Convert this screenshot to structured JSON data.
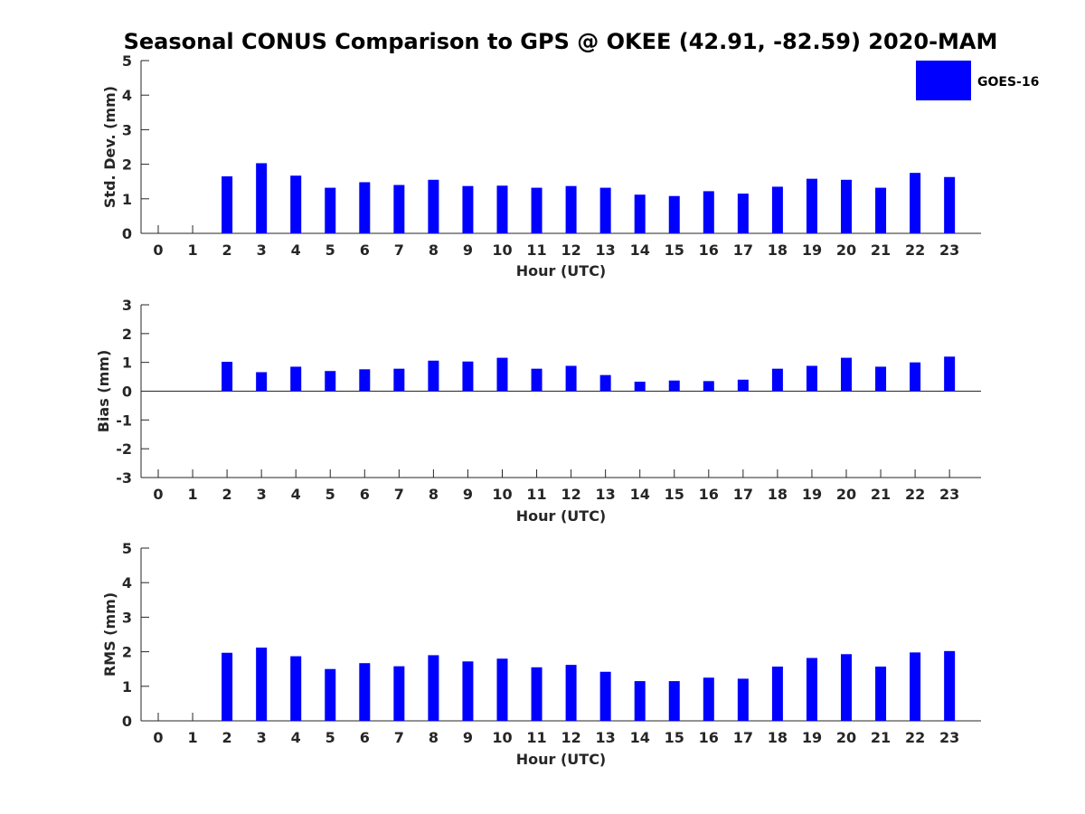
{
  "title": "Seasonal CONUS Comparison to GPS @ OKEE (42.91, -82.59) 2020-MAM",
  "legend": {
    "label": "GOES-16",
    "color": "#0000ff"
  },
  "chart_data": [
    {
      "type": "bar",
      "title": "Seasonal CONUS Comparison to GPS @ OKEE (42.91, -82.59) 2020-MAM",
      "xlabel": "Hour (UTC)",
      "ylabel": "Std. Dev. (mm)",
      "ylim": [
        0,
        5
      ],
      "yticks": [
        "0",
        "1",
        "2",
        "3",
        "4",
        "5"
      ],
      "categories": [
        "0",
        "1",
        "2",
        "3",
        "4",
        "5",
        "6",
        "7",
        "8",
        "9",
        "10",
        "11",
        "12",
        "13",
        "14",
        "15",
        "16",
        "17",
        "18",
        "19",
        "20",
        "21",
        "22",
        "23"
      ],
      "series": [
        {
          "name": "GOES-16",
          "values": [
            null,
            null,
            1.65,
            2.03,
            1.67,
            1.32,
            1.48,
            1.4,
            1.55,
            1.37,
            1.38,
            1.32,
            1.37,
            1.32,
            1.12,
            1.08,
            1.22,
            1.15,
            1.35,
            1.58,
            1.55,
            1.32,
            1.75,
            1.63
          ]
        }
      ]
    },
    {
      "type": "bar",
      "xlabel": "Hour (UTC)",
      "ylabel": "Bias (mm)",
      "ylim": [
        -3,
        3
      ],
      "yticks": [
        "-3",
        "-2",
        "-1",
        "0",
        "1",
        "2",
        "3"
      ],
      "zero_line": true,
      "categories": [
        "0",
        "1",
        "2",
        "3",
        "4",
        "5",
        "6",
        "7",
        "8",
        "9",
        "10",
        "11",
        "12",
        "13",
        "14",
        "15",
        "16",
        "17",
        "18",
        "19",
        "20",
        "21",
        "22",
        "23"
      ],
      "series": [
        {
          "name": "GOES-16",
          "values": [
            null,
            null,
            1.02,
            0.66,
            0.85,
            0.7,
            0.76,
            0.78,
            1.06,
            1.03,
            1.16,
            0.78,
            0.88,
            0.56,
            0.33,
            0.37,
            0.35,
            0.4,
            0.78,
            0.88,
            1.16,
            0.85,
            1.0,
            1.2
          ]
        }
      ]
    },
    {
      "type": "bar",
      "xlabel": "Hour (UTC)",
      "ylabel": "RMS (mm)",
      "ylim": [
        0,
        5
      ],
      "yticks": [
        "0",
        "1",
        "2",
        "3",
        "4",
        "5"
      ],
      "categories": [
        "0",
        "1",
        "2",
        "3",
        "4",
        "5",
        "6",
        "7",
        "8",
        "9",
        "10",
        "11",
        "12",
        "13",
        "14",
        "15",
        "16",
        "17",
        "18",
        "19",
        "20",
        "21",
        "22",
        "23"
      ],
      "series": [
        {
          "name": "GOES-16",
          "values": [
            null,
            null,
            1.97,
            2.12,
            1.87,
            1.5,
            1.67,
            1.58,
            1.9,
            1.72,
            1.8,
            1.55,
            1.62,
            1.42,
            1.15,
            1.15,
            1.25,
            1.22,
            1.57,
            1.82,
            1.93,
            1.57,
            1.98,
            2.02
          ]
        }
      ]
    }
  ]
}
